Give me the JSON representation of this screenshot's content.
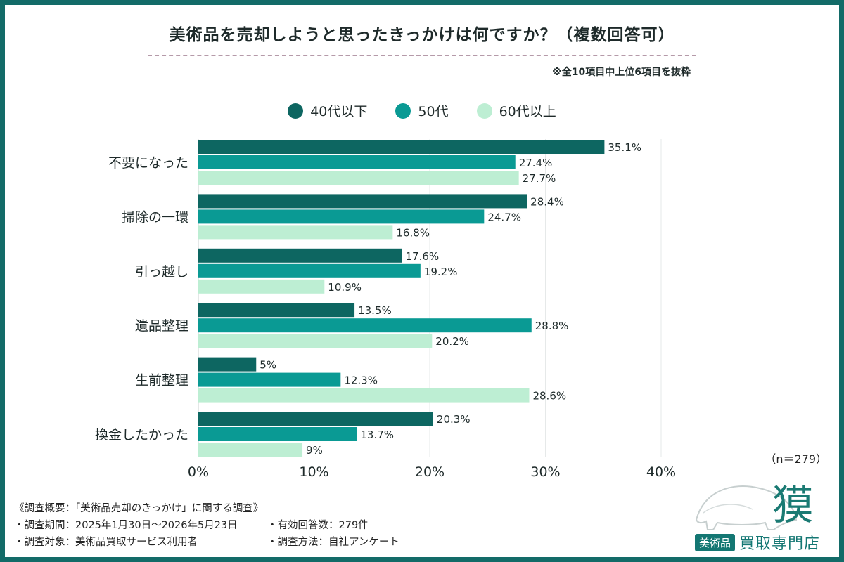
{
  "title": "美術品を売却しようと思ったきっかけは何ですか？（複数回答可）",
  "note": "※全10項目中上位6項目を抜粋",
  "n_label": "（n＝279）",
  "footer": {
    "summary": "《調査概要：「美術品売却のきっかけ」に関する調査》",
    "period": "・調査期間：2025年1月30日〜2026年5月23日",
    "valid": "・有効回答数：279件",
    "target": "・調査対象：美術品買取サービス利用者",
    "method": "・調査方法：自社アンケート"
  },
  "logo": {
    "badge": "美術品",
    "text": "買取専門店",
    "kanji": "獏"
  },
  "colors": {
    "series1": "#0d6661",
    "series2": "#0a9a94",
    "series3": "#bdeed3",
    "frame": "#136b68"
  },
  "chart_data": {
    "type": "bar",
    "orientation": "horizontal",
    "categories": [
      "不要になった",
      "掃除の一環",
      "引っ越し",
      "遺品整理",
      "生前整理",
      "換金したかった"
    ],
    "series": [
      {
        "name": "40代以下",
        "values": [
          35.1,
          28.4,
          17.6,
          13.5,
          5,
          20.3
        ]
      },
      {
        "name": "50代",
        "values": [
          27.4,
          24.7,
          19.2,
          28.8,
          12.3,
          13.7
        ]
      },
      {
        "name": "60代以上",
        "values": [
          27.7,
          16.8,
          10.9,
          20.2,
          28.6,
          9
        ]
      }
    ],
    "xlim": [
      0,
      40
    ],
    "xticks": [
      "0%",
      "10%",
      "20%",
      "30%",
      "40%"
    ],
    "value_suffix": "%",
    "legend": "top-center",
    "grid": true
  }
}
